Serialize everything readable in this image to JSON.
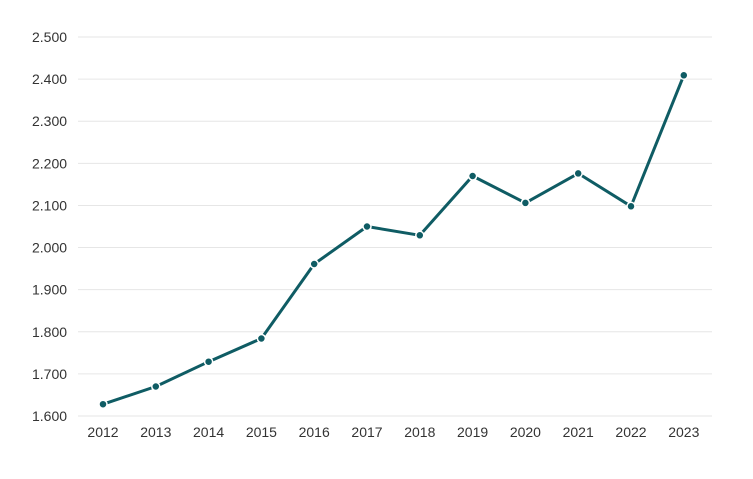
{
  "chart_data": {
    "type": "line",
    "title": "",
    "xlabel": "",
    "ylabel": "",
    "categories": [
      "2012",
      "2013",
      "2014",
      "2015",
      "2016",
      "2017",
      "2018",
      "2019",
      "2020",
      "2021",
      "2022",
      "2023"
    ],
    "series": [
      {
        "values": [
          1628,
          1670,
          1729,
          1784,
          1961,
          2050,
          2029,
          2170,
          2106,
          2176,
          2098,
          2409
        ]
      }
    ],
    "ylim": [
      1600,
      2500
    ],
    "yticks": [
      1600,
      1700,
      1800,
      1900,
      2000,
      2100,
      2200,
      2300,
      2400,
      2500
    ],
    "ytick_labels": [
      "1.600",
      "1.700",
      "1.800",
      "1.900",
      "2.000",
      "2.100",
      "2.200",
      "2.300",
      "2.400",
      "2.500"
    ],
    "grid": true,
    "legend": "none",
    "colors": {
      "series": "#0f5c64",
      "grid": "#e6e6e6",
      "text": "#333333"
    }
  }
}
